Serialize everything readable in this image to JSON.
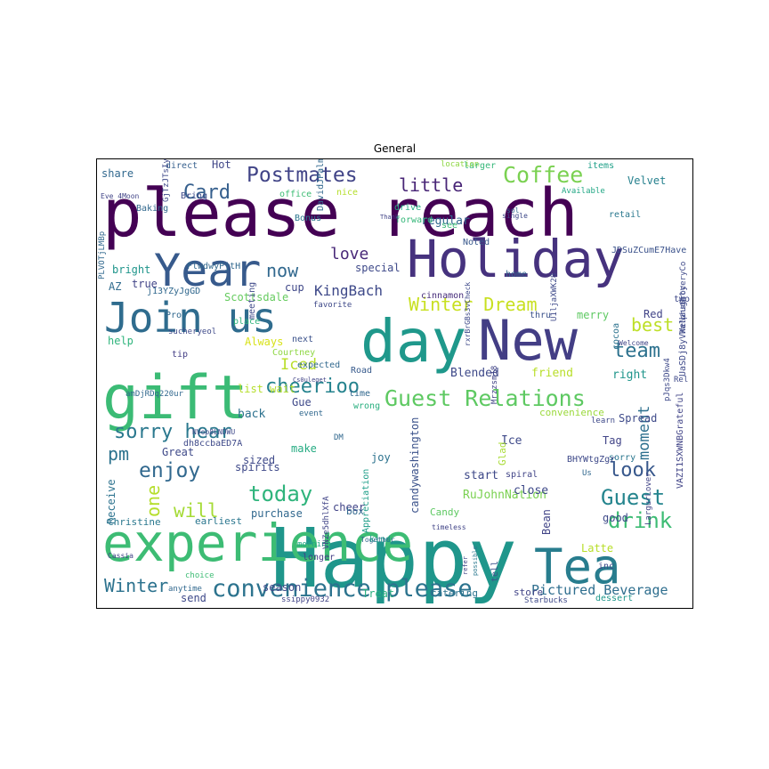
{
  "chart_data": {
    "type": "wordcloud",
    "title": "General",
    "words": [
      {
        "text": "please reach",
        "weight": 1.0,
        "color": "#440154"
      },
      {
        "text": "Happy",
        "weight": 0.98,
        "color": "#1f968b"
      },
      {
        "text": "experience",
        "weight": 0.82,
        "color": "#3dbc74"
      },
      {
        "text": "New",
        "weight": 0.72,
        "color": "#433e85"
      },
      {
        "text": "Holiday",
        "weight": 0.65,
        "color": "#46327e"
      },
      {
        "text": "day",
        "weight": 0.62,
        "color": "#1f988b"
      },
      {
        "text": "gift",
        "weight": 0.6,
        "color": "#3bbb75"
      },
      {
        "text": "Year",
        "weight": 0.52,
        "color": "#375a8c"
      },
      {
        "text": "Tea",
        "weight": 0.55,
        "color": "#287d8e"
      },
      {
        "text": "Join us",
        "weight": 0.5,
        "color": "#2f6c8e"
      },
      {
        "text": "convenience please",
        "weight": 0.3,
        "color": "#2c738e"
      },
      {
        "text": "Guest Relations",
        "weight": 0.26,
        "color": "#5ec962"
      },
      {
        "text": "Coffee",
        "weight": 0.25,
        "color": "#7ad151"
      },
      {
        "text": "Postmates",
        "weight": 0.22,
        "color": "#414487"
      },
      {
        "text": "Winter Dream",
        "weight": 0.22,
        "color": "#c8e020"
      },
      {
        "text": "sorry hear",
        "weight": 0.22,
        "color": "#2a788e"
      },
      {
        "text": "today",
        "weight": 0.22,
        "color": "#2fb47c"
      },
      {
        "text": "Guest",
        "weight": 0.2,
        "color": "#25858e"
      },
      {
        "text": "drink",
        "weight": 0.2,
        "color": "#3dbc74"
      },
      {
        "text": "team",
        "weight": 0.2,
        "color": "#2c718e"
      },
      {
        "text": "enjoy",
        "weight": 0.2,
        "color": "#31688e"
      },
      {
        "text": "cheerioo",
        "weight": 0.18,
        "color": "#25838e"
      },
      {
        "text": "moment",
        "weight": 0.16,
        "color": "#2d708e"
      },
      {
        "text": "Card",
        "weight": 0.18,
        "color": "#355f8d"
      },
      {
        "text": "little",
        "weight": 0.16,
        "color": "#482576"
      },
      {
        "text": "now",
        "weight": 0.18,
        "color": "#31688e"
      },
      {
        "text": "love",
        "weight": 0.15,
        "color": "#482878"
      },
      {
        "text": "best",
        "weight": 0.17,
        "color": "#bddf26"
      },
      {
        "text": "look",
        "weight": 0.17,
        "color": "#38588c"
      },
      {
        "text": "will",
        "weight": 0.17,
        "color": "#a5db36"
      },
      {
        "text": "Winter",
        "weight": 0.16,
        "color": "#2c728e"
      },
      {
        "text": "one",
        "weight": 0.15,
        "color": "#b5de2b"
      },
      {
        "text": "pm",
        "weight": 0.15,
        "color": "#2c738e"
      },
      {
        "text": "Iced",
        "weight": 0.16,
        "color": "#b8de29"
      },
      {
        "text": "KingBach",
        "weight": 0.12,
        "color": "#3e4989"
      },
      {
        "text": "Pictured Beverage",
        "weight": 0.12,
        "color": "#2e6e8e"
      },
      {
        "text": "Scottsdale",
        "weight": 0.09,
        "color": "#65cb5e"
      },
      {
        "text": "candywashington",
        "weight": 0.09,
        "color": "#3b528b"
      },
      {
        "text": "RuJohnNation",
        "weight": 0.09,
        "color": "#7ad151"
      },
      {
        "text": "Velvet",
        "weight": 0.09,
        "color": "#26818e"
      },
      {
        "text": "Appreciation",
        "weight": 0.08,
        "color": "#1f9e89"
      },
      {
        "text": "JDSuZCumE7Have",
        "weight": 0.07,
        "color": "#3b528b"
      },
      {
        "text": "UaSDj8yVWeNaughty",
        "weight": 0.07,
        "color": "#3e4989"
      },
      {
        "text": "VAZI1SXWNBGrateful",
        "weight": 0.06,
        "color": "#414487"
      },
      {
        "text": "RalphsGroceryCo",
        "weight": 0.05,
        "color": "#3e4989"
      },
      {
        "text": "Baking",
        "weight": 0.06,
        "color": "#31688e"
      },
      {
        "text": "Bring",
        "weight": 0.06,
        "color": "#3e4a89"
      },
      {
        "text": "Hot",
        "weight": 0.09,
        "color": "#404688"
      },
      {
        "text": "share",
        "weight": 0.09,
        "color": "#31688e"
      },
      {
        "text": "direct",
        "weight": 0.06,
        "color": "#355f8d"
      },
      {
        "text": "items",
        "weight": 0.06,
        "color": "#1fa088"
      },
      {
        "text": "larger",
        "weight": 0.06,
        "color": "#35b779"
      },
      {
        "text": "location",
        "weight": 0.05,
        "color": "#8fd744"
      },
      {
        "text": "office",
        "weight": 0.06,
        "color": "#3dbc74"
      },
      {
        "text": "nice",
        "weight": 0.06,
        "color": "#b5de2b"
      },
      {
        "text": "Available",
        "weight": 0.05,
        "color": "#22a785"
      },
      {
        "text": "retail",
        "weight": 0.06,
        "color": "#2a788e"
      },
      {
        "text": "regular",
        "weight": 0.09,
        "color": "#31688e"
      },
      {
        "text": "drive",
        "weight": 0.06,
        "color": "#25ab82"
      },
      {
        "text": "forward",
        "weight": 0.06,
        "color": "#35b779"
      },
      {
        "text": "Bonus",
        "weight": 0.06,
        "color": "#2a768e"
      },
      {
        "text": "see",
        "weight": 0.06,
        "color": "#3aba76"
      },
      {
        "text": "Noted",
        "weight": 0.05,
        "color": "#38588c"
      },
      {
        "text": "special",
        "weight": 0.07,
        "color": "#3e4989"
      },
      {
        "text": "bright",
        "weight": 0.08,
        "color": "#1f958b"
      },
      {
        "text": "true",
        "weight": 0.08,
        "color": "#414487"
      },
      {
        "text": "AZ",
        "weight": 0.08,
        "color": "#2f6b8e"
      },
      {
        "text": "cup",
        "weight": 0.08,
        "color": "#3f4788"
      },
      {
        "text": "home",
        "weight": 0.06,
        "color": "#33638d"
      },
      {
        "text": "cinnamon",
        "weight": 0.05,
        "color": "#472d7b"
      },
      {
        "text": "Red",
        "weight": 0.08,
        "color": "#414487"
      },
      {
        "text": "merry",
        "weight": 0.08,
        "color": "#5ec962"
      },
      {
        "text": "thru",
        "weight": 0.06,
        "color": "#3b528b"
      },
      {
        "text": "help",
        "weight": 0.08,
        "color": "#2fb47c"
      },
      {
        "text": "Always",
        "weight": 0.08,
        "color": "#d8e219"
      },
      {
        "text": "next",
        "weight": 0.06,
        "color": "#3b528b"
      },
      {
        "text": "Courtney",
        "weight": 0.06,
        "color": "#8fd744"
      },
      {
        "text": "expected",
        "weight": 0.06,
        "color": "#31688e"
      },
      {
        "text": "Road",
        "weight": 0.06,
        "color": "#375a8c"
      },
      {
        "text": "Blended",
        "weight": 0.09,
        "color": "#3e4989"
      },
      {
        "text": "friend",
        "weight": 0.09,
        "color": "#b8de29"
      },
      {
        "text": "right",
        "weight": 0.09,
        "color": "#1f958b"
      },
      {
        "text": "Welcome",
        "weight": 0.05,
        "color": "#414487"
      },
      {
        "text": "tip",
        "weight": 0.06,
        "color": "#433e85"
      },
      {
        "text": "list wait",
        "weight": 0.09,
        "color": "#b5de2b"
      },
      {
        "text": "time",
        "weight": 0.07,
        "color": "#31688e"
      },
      {
        "text": "wrong",
        "weight": 0.06,
        "color": "#29af7f"
      },
      {
        "text": "convenience",
        "weight": 0.06,
        "color": "#9bd93c"
      },
      {
        "text": "Spread",
        "weight": 0.07,
        "color": "#3e4a89"
      },
      {
        "text": "back",
        "weight": 0.09,
        "color": "#2c718e"
      },
      {
        "text": "Gue",
        "weight": 0.08,
        "color": "#3e4989"
      },
      {
        "text": "event",
        "weight": 0.06,
        "color": "#31688e"
      },
      {
        "text": "Ice",
        "weight": 0.09,
        "color": "#3e4989"
      },
      {
        "text": "Tag",
        "weight": 0.08,
        "color": "#414487"
      },
      {
        "text": "Glad",
        "weight": 0.08,
        "color": "#a8db34"
      },
      {
        "text": "Great",
        "weight": 0.08,
        "color": "#3e4989"
      },
      {
        "text": "spirits",
        "weight": 0.08,
        "color": "#3e4989"
      },
      {
        "text": "make",
        "weight": 0.07,
        "color": "#25ab82"
      },
      {
        "text": "cheer",
        "weight": 0.09,
        "color": "#414487"
      },
      {
        "text": "joy",
        "weight": 0.08,
        "color": "#2c728e"
      },
      {
        "text": "sized",
        "weight": 0.08,
        "color": "#3e4989"
      },
      {
        "text": "close",
        "weight": 0.09,
        "color": "#3e4989"
      },
      {
        "text": "start",
        "weight": 0.08,
        "color": "#3e4989"
      },
      {
        "text": "sorry",
        "weight": 0.06,
        "color": "#2a768e"
      },
      {
        "text": "Receive",
        "weight": 0.08,
        "color": "#2c728e"
      },
      {
        "text": "Christine",
        "weight": 0.07,
        "color": "#2a788e"
      },
      {
        "text": "earliest",
        "weight": 0.07,
        "color": "#2a768e"
      },
      {
        "text": "box",
        "weight": 0.07,
        "color": "#31688e"
      },
      {
        "text": "purchase",
        "weight": 0.08,
        "color": "#31688e"
      },
      {
        "text": "Candy",
        "weight": 0.07,
        "color": "#5ec962"
      },
      {
        "text": "good",
        "weight": 0.08,
        "color": "#3e4989"
      },
      {
        "text": "Latte",
        "weight": 0.08,
        "color": "#b8de29"
      },
      {
        "text": "inc",
        "weight": 0.06,
        "color": "#3e4989"
      },
      {
        "text": "Bean",
        "weight": 0.08,
        "color": "#414487"
      },
      {
        "text": "season",
        "weight": 0.08,
        "color": "#3e4989"
      },
      {
        "text": "send",
        "weight": 0.08,
        "color": "#3e4989"
      },
      {
        "text": "Treat",
        "weight": 0.08,
        "color": "#29af7f"
      },
      {
        "text": "catering",
        "weight": 0.06,
        "color": "#2c738e"
      },
      {
        "text": "store",
        "weight": 0.06,
        "color": "#414487"
      },
      {
        "text": "Starbucks",
        "weight": 0.05,
        "color": "#3e4989"
      },
      {
        "text": "dessert",
        "weight": 0.06,
        "color": "#1f988b"
      },
      {
        "text": "longer",
        "weight": 0.06,
        "color": "#433e85"
      },
      {
        "text": "morning",
        "weight": 0.06,
        "color": "#22a785"
      },
      {
        "text": "Together",
        "weight": 0.05,
        "color": "#31688e"
      },
      {
        "text": "timeless",
        "weight": 0.04,
        "color": "#414487"
      },
      {
        "text": "tell",
        "weight": 0.06,
        "color": "#3b528b"
      },
      {
        "text": "kind",
        "weight": 0.06,
        "color": "#1f958b"
      },
      {
        "text": "two",
        "weight": 0.06,
        "color": "#3e4989"
      },
      {
        "text": "Rel",
        "weight": 0.05,
        "color": "#3e4989"
      },
      {
        "text": "cocoa",
        "weight": 0.05,
        "color": "#2c728e"
      },
      {
        "text": "Pro",
        "weight": 0.05,
        "color": "#31688e"
      },
      {
        "text": "place",
        "weight": 0.06,
        "color": "#2fb47c"
      },
      {
        "text": "meeting",
        "weight": 0.05,
        "color": "#3e4989"
      },
      {
        "text": "Thank",
        "weight": 0.04,
        "color": "#414487"
      },
      {
        "text": "single",
        "weight": 0.04,
        "color": "#3e4989"
      },
      {
        "text": "Cassia",
        "weight": 0.05,
        "color": "#414487"
      },
      {
        "text": "choice",
        "weight": 0.04,
        "color": "#3dbc74"
      },
      {
        "text": "anytime",
        "weight": 0.04,
        "color": "#31688e"
      },
      {
        "text": "refer",
        "weight": 0.04,
        "color": "#414487"
      },
      {
        "text": "possible",
        "weight": 0.04,
        "color": "#2a788e"
      },
      {
        "text": "learn",
        "weight": 0.05,
        "color": "#3e4989"
      },
      {
        "text": "Us",
        "weight": 0.05,
        "color": "#31688e"
      },
      {
        "text": "favorite",
        "weight": 0.04,
        "color": "#3e4989"
      },
      {
        "text": "DM",
        "weight": 0.05,
        "color": "#31688e"
      },
      {
        "text": "sol",
        "weight": 0.05,
        "color": "#31688e"
      },
      {
        "text": "spiral",
        "weight": 0.04,
        "color": "#414487"
      },
      {
        "text": "Eve 4Moon",
        "weight": 0.05,
        "color": "#414487"
      },
      {
        "text": "GjTzJTsIyn",
        "weight": 0.04,
        "color": "#3e4989"
      },
      {
        "text": "PLVOTjLMBp",
        "weight": 0.04,
        "color": "#31688e"
      },
      {
        "text": "DavidJPalmerC",
        "weight": 0.04,
        "color": "#31688e"
      },
      {
        "text": "j13YZyJgGD",
        "weight": 0.05,
        "color": "#31688e"
      },
      {
        "text": "FlwdwyPjtH",
        "weight": 0.05,
        "color": "#31688e"
      },
      {
        "text": "sucheryeol",
        "weight": 0.05,
        "color": "#3e4989"
      },
      {
        "text": "amDjRDq220ur",
        "weight": 0.04,
        "color": "#31688e"
      },
      {
        "text": "dh8ccbaED7A",
        "weight": 0.04,
        "color": "#3e4989"
      },
      {
        "text": "BHYWtgZgr",
        "weight": 0.05,
        "color": "#3e4989"
      },
      {
        "text": "U1ljaXWK28",
        "weight": 0.05,
        "color": "#3e4989"
      },
      {
        "text": "ssippy0932",
        "weight": 0.05,
        "color": "#414487"
      },
      {
        "text": "VNZe5dhlXfA",
        "weight": 0.04,
        "color": "#414487"
      },
      {
        "text": "NVop8LNDWU",
        "weight": 0.04,
        "color": "#3e4989"
      },
      {
        "text": "pJqs3Dkw4",
        "weight": 0.04,
        "color": "#3e4989"
      },
      {
        "text": "rxrBrGBs3vCheck",
        "weight": 0.04,
        "color": "#3e4989"
      },
      {
        "text": "Mrzzsm18",
        "weight": 0.04,
        "color": "#414487"
      },
      {
        "text": "LargurLover",
        "weight": 0.04,
        "color": "#414487"
      },
      {
        "text": "Cs0uleget",
        "weight": 0.04,
        "color": "#414487"
      },
      {
        "text": "hmt0w",
        "weight": 0.04,
        "color": "#3dbc74"
      }
    ]
  }
}
